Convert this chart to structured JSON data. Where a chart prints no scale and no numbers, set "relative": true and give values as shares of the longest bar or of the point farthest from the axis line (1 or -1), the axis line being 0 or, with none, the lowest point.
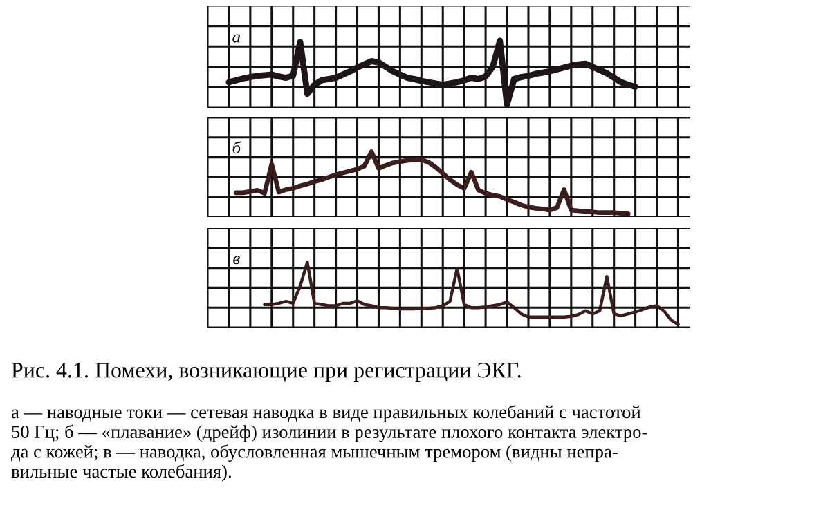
{
  "chart_data": [
    {
      "type": "line",
      "relative": true,
      "grid": true,
      "tick_labels": false,
      "annotations": [
        "а"
      ],
      "categories": [
        null,
        null,
        null,
        null,
        null,
        null,
        null,
        null,
        null,
        null,
        null,
        null,
        null,
        null,
        null,
        null,
        null,
        null,
        null,
        null,
        null,
        null,
        null,
        null,
        null,
        null,
        null,
        null,
        null,
        null,
        null,
        null,
        null,
        null,
        null,
        null,
        null,
        null,
        null,
        null,
        null,
        null,
        null,
        null,
        null,
        null,
        null,
        null,
        null,
        null,
        null,
        null,
        null,
        null,
        null,
        null,
        null,
        null,
        null,
        null,
        null,
        null,
        null,
        null
      ],
      "series": [
        {
          "color": "#1e1616",
          "values": [
            0.35,
            0.38,
            0.41,
            0.43,
            0.45,
            0.46,
            0.47,
            0.44,
            0.42,
            0.45,
            0.98,
            0.17,
            0.31,
            0.38,
            0.4,
            0.42,
            0.47,
            0.52,
            0.58,
            0.63,
            0.68,
            0.66,
            0.59,
            0.52,
            0.47,
            0.42,
            0.4,
            0.37,
            0.35,
            0.33,
            0.31,
            0.33,
            0.35,
            0.38,
            0.42,
            0.4,
            0.44,
            0.59,
            1.0,
            0,
            0.4,
            0.43,
            0.45,
            0.48,
            0.5,
            0.52,
            0.55,
            0.58,
            0.61,
            0.63,
            0.64,
            0.59,
            0.54,
            0.49,
            0.42,
            0.35,
            0.31,
            0.28,
            null,
            null,
            null,
            null,
            null,
            null
          ]
        }
      ]
    },
    {
      "type": "line",
      "relative": true,
      "grid": true,
      "tick_labels": false,
      "annotations": [
        "б"
      ],
      "categories": [
        null,
        null,
        null,
        null,
        null,
        null,
        null,
        null,
        null,
        null,
        null,
        null,
        null,
        null,
        null,
        null,
        null,
        null,
        null,
        null,
        null,
        null,
        null,
        null,
        null,
        null,
        null,
        null,
        null,
        null,
        null,
        null,
        null,
        null,
        null,
        null,
        null,
        null,
        null,
        null,
        null,
        null,
        null,
        null,
        null,
        null,
        null,
        null,
        null,
        null,
        null,
        null,
        null,
        null,
        null,
        null,
        null,
        null,
        null,
        null,
        null,
        null,
        null,
        null
      ],
      "series": [
        {
          "color": "#3a1e1e",
          "values": [
            null,
            0.34,
            0.34,
            0.36,
            0.38,
            0.33,
            0.8,
            0.35,
            0.39,
            0.41,
            0.45,
            0.48,
            0.52,
            0.55,
            0.59,
            0.63,
            0.66,
            0.69,
            0.72,
            0.77,
            1.0,
            0.73,
            0.78,
            0.82,
            0.84,
            0.86,
            0.87,
            0.87,
            0.83,
            0.75,
            0.65,
            0.55,
            0.47,
            0.41,
            0.67,
            0.38,
            0.33,
            0.3,
            0.28,
            0.23,
            0.19,
            0.14,
            0.11,
            0.09,
            0.08,
            0.06,
            0.1,
            0.39,
            0.06,
            0.05,
            0.04,
            0.03,
            0.02,
            0.02,
            0.02,
            0.01,
            0,
            null,
            null,
            null,
            null,
            null,
            null,
            null
          ]
        }
      ]
    },
    {
      "type": "line",
      "relative": true,
      "grid": true,
      "tick_labels": false,
      "annotations": [
        "в",
        "а — наводные токи — сетевая наводка в виде правильных колебаний с частотой\n50 Гц; б — «плавание» (дрейф) изолинии в результате плохого контакта электро-\nда с кожей; в — наводка, обусловленная мышечным тремором (видны непра-\nвильные частые колебания)."
      ],
      "title": "Рис. 4.1. Помехи, возникающие при регистрации ЭКГ.",
      "categories": [
        null,
        null,
        null,
        null,
        null,
        null,
        null,
        null,
        null,
        null,
        null,
        null,
        null,
        null,
        null,
        null,
        null,
        null,
        null,
        null,
        null,
        null,
        null,
        null,
        null,
        null,
        null,
        null,
        null,
        null,
        null,
        null,
        null,
        null,
        null,
        null,
        null,
        null,
        null,
        null,
        null,
        null,
        null,
        null,
        null,
        null,
        null,
        null,
        null,
        null,
        null,
        null,
        null,
        null,
        null,
        null,
        null,
        null,
        null,
        null,
        null,
        null,
        null,
        null
      ],
      "series": [
        {
          "color": "#3a1e1e",
          "values": [
            null,
            null,
            null,
            null,
            null,
            0.32,
            0.32,
            0.34,
            0.37,
            0.34,
            0.62,
            1.0,
            0.34,
            0.32,
            0.3,
            0.3,
            0.34,
            0.34,
            0.38,
            0.32,
            0.3,
            0.27,
            0.27,
            0.26,
            0.25,
            0.25,
            0.25,
            0.26,
            0.26,
            0.27,
            0.3,
            0.37,
            0.9,
            0.32,
            0.27,
            0.27,
            0.28,
            0.3,
            0.32,
            0.36,
            0.27,
            0.17,
            0.12,
            0.12,
            0.12,
            0.12,
            0.12,
            0.12,
            0.13,
            0.16,
            0.22,
            0.17,
            0.22,
            0.77,
            0.17,
            0.14,
            0.17,
            0.2,
            0.24,
            0.28,
            0.3,
            0.22,
            0.07,
            0
          ]
        }
      ]
    }
  ]
}
